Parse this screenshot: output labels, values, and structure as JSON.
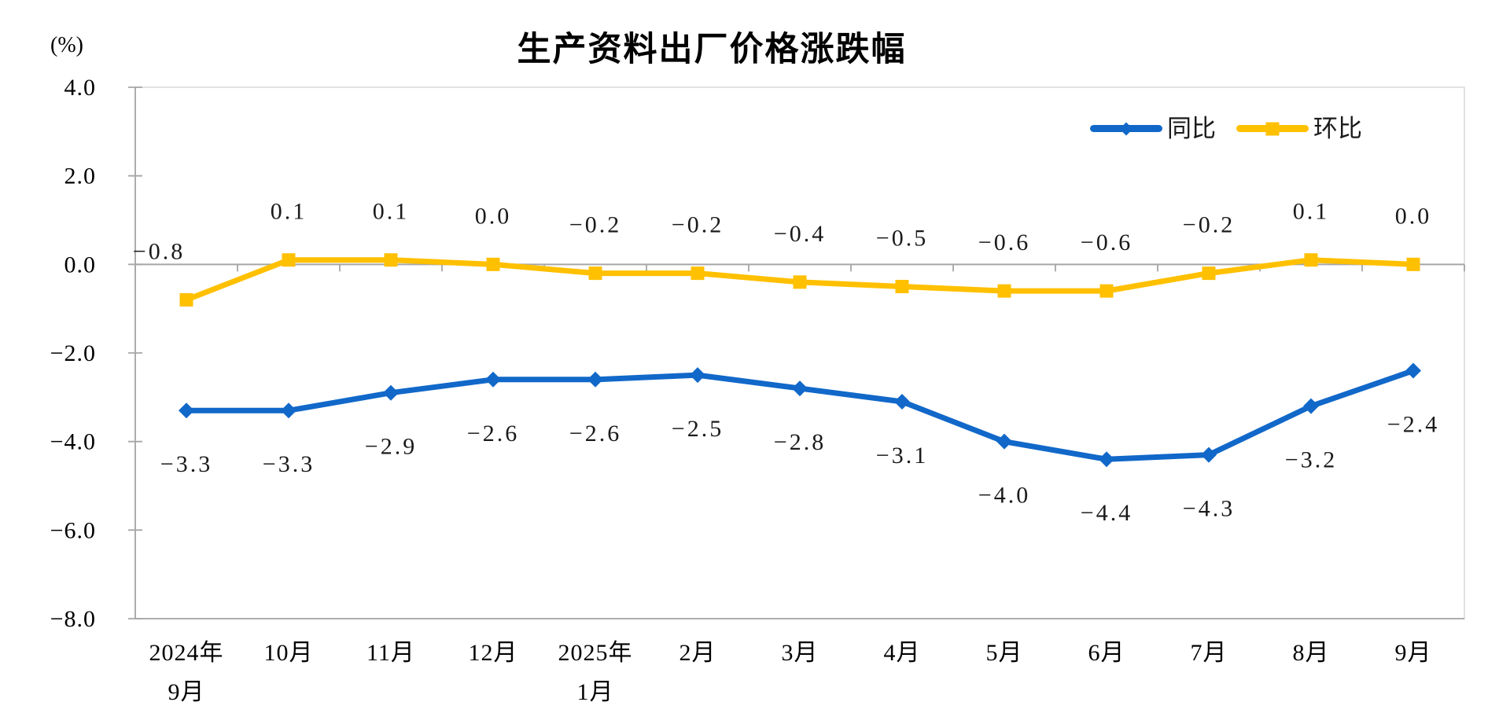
{
  "chart_data": {
    "type": "line",
    "title": "生产资料出厂价格涨跌幅",
    "unit": "(%)",
    "categories": [
      "2024年\n9月",
      "10月",
      "11月",
      "12月",
      "2025年\n1月",
      "2月",
      "3月",
      "4月",
      "5月",
      "6月",
      "7月",
      "8月",
      "9月"
    ],
    "series": [
      {
        "name": "同比",
        "color": "#1168C9",
        "marker": "diamond",
        "label_position": "below",
        "values": [
          -3.3,
          -3.3,
          -2.9,
          -2.6,
          -2.6,
          -2.5,
          -2.8,
          -3.1,
          -4.0,
          -4.4,
          -4.3,
          -3.2,
          -2.4
        ]
      },
      {
        "name": "环比",
        "color": "#FFC000",
        "marker": "square",
        "label_position": "above",
        "values": [
          -0.8,
          0.1,
          0.1,
          0.0,
          -0.2,
          -0.2,
          -0.4,
          -0.5,
          -0.6,
          -0.6,
          -0.2,
          0.1,
          0.0
        ]
      }
    ],
    "y_axis": {
      "min": -8.0,
      "max": 4.0,
      "step": 2.0,
      "tick_labels": [
        "4.0",
        "2.0",
        "0.0",
        "-2.0",
        "-4.0",
        "-6.0",
        "-8.0"
      ]
    },
    "legend_position": "top-right",
    "grid": false,
    "colors": {
      "axis": "#A6A6A6",
      "border": "#D9D9D9",
      "text": "#000000"
    }
  }
}
